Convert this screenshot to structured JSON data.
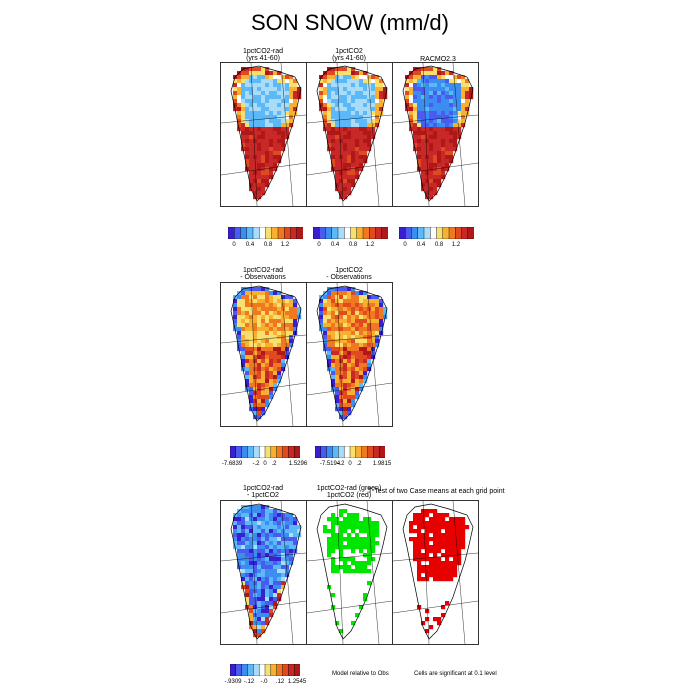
{
  "title": "SON SNOW (mm/d)",
  "colors": {
    "snow_scale": [
      "#3a1fd0",
      "#4a5cf0",
      "#3b8ef0",
      "#5db8f8",
      "#a8dcf8",
      "#ffffff",
      "#f8e070",
      "#f8b030",
      "#f07820",
      "#e04a20",
      "#c82828",
      "#b01818"
    ],
    "diff_scale": [
      "#3a1fd0",
      "#4a5cf0",
      "#3b8ef0",
      "#5db8f8",
      "#a8dcf8",
      "#ffffff",
      "#f8e070",
      "#f8b030",
      "#f07820",
      "#e04a20",
      "#c82828",
      "#b01818"
    ],
    "green": "#00e600",
    "red": "#e60000"
  },
  "rows": [
    {
      "panels": [
        {
          "title_line1": "1pctCO2-rad",
          "title_line2": "(yrs 41-60)"
        },
        {
          "title_line1": "1pctCO2",
          "title_line2": "(yrs 41-60)"
        },
        {
          "title_line1": "RACMO2.3",
          "title_line2": ""
        }
      ],
      "colorbars": [
        {
          "ticks": [
            "0",
            "0.4",
            "0.8",
            "1.2"
          ]
        },
        {
          "ticks": [
            "0",
            "0.4",
            "0.8",
            "1.2"
          ]
        },
        {
          "ticks": [
            "0",
            "0.4",
            "0.8",
            "1.2"
          ]
        }
      ]
    },
    {
      "panels": [
        {
          "title_line1": "1pctCO2-rad",
          "title_line2": "- Observations"
        },
        {
          "title_line1": "1pctCO2",
          "title_line2": "- Observations"
        }
      ],
      "colorbars": [
        {
          "ticks": [
            "-7.6839",
            "-.2",
            "0",
            ".2",
            "1.5296"
          ]
        },
        {
          "ticks": [
            "-7.5194",
            "-.2",
            "0",
            ".2",
            "1.9815"
          ]
        }
      ]
    },
    {
      "panels": [
        {
          "title_line1": "1pctCO2-rad",
          "title_line2": "- 1pctCO2"
        },
        {
          "title_line1": "1pctCO2-rad (green)",
          "title_line2": "1pctCO2 (red)"
        },
        {
          "title_line1": "T-Test of two Case means at each grid point",
          "title_line2": ""
        }
      ],
      "colorbars": [
        {
          "ticks": [
            "-.9309",
            "-.12",
            "-.0",
            ".12",
            "1.2545"
          ]
        }
      ],
      "notes": [
        "Model relative to Obs",
        "Cells are significant at 0.1 level"
      ]
    }
  ]
}
